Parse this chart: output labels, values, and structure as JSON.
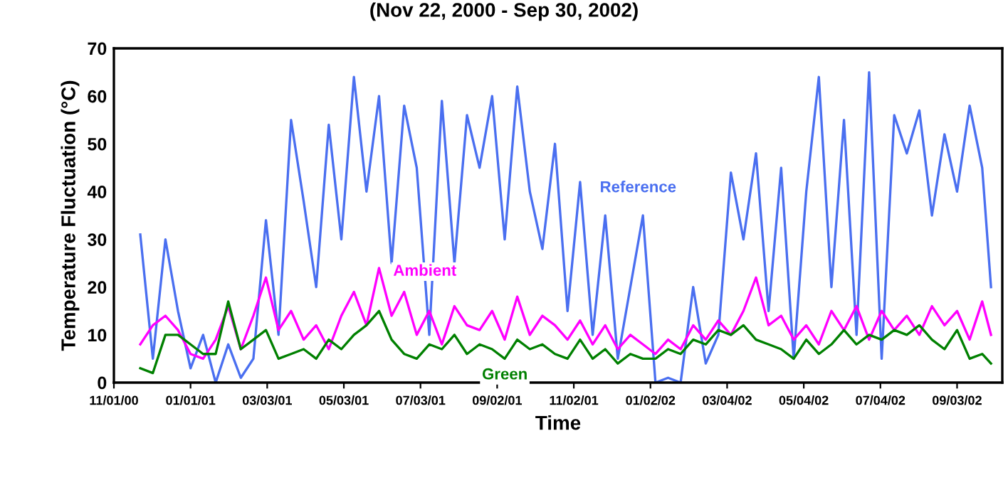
{
  "chart_data": {
    "type": "line",
    "title": "(Nov 22, 2000 - Sep 30, 2002)",
    "xlabel": "Time",
    "ylabel": "Temperature Fluctuation (°C)",
    "x": [
      "2000-11-22",
      "2000-12-02",
      "2000-12-12",
      "2000-12-22",
      "2001-01-01",
      "2001-01-11",
      "2001-01-21",
      "2001-01-31",
      "2001-02-10",
      "2001-02-20",
      "2001-03-02",
      "2001-03-12",
      "2001-03-22",
      "2001-04-01",
      "2001-04-11",
      "2001-04-21",
      "2001-05-01",
      "2001-05-11",
      "2001-05-21",
      "2001-05-31",
      "2001-06-10",
      "2001-06-20",
      "2001-06-30",
      "2001-07-10",
      "2001-07-20",
      "2001-07-30",
      "2001-08-09",
      "2001-08-19",
      "2001-08-29",
      "2001-09-08",
      "2001-09-18",
      "2001-09-28",
      "2001-10-08",
      "2001-10-18",
      "2001-10-28",
      "2001-11-07",
      "2001-11-17",
      "2001-11-27",
      "2001-12-07",
      "2001-12-17",
      "2001-12-27",
      "2002-01-06",
      "2002-01-16",
      "2002-01-26",
      "2002-02-05",
      "2002-02-15",
      "2002-02-25",
      "2002-03-07",
      "2002-03-17",
      "2002-03-27",
      "2002-04-06",
      "2002-04-16",
      "2002-04-26",
      "2002-05-06",
      "2002-05-16",
      "2002-05-26",
      "2002-06-05",
      "2002-06-15",
      "2002-06-25",
      "2002-07-05",
      "2002-07-15",
      "2002-07-25",
      "2002-08-04",
      "2002-08-14",
      "2002-08-24",
      "2002-09-03",
      "2002-09-13",
      "2002-09-23",
      "2002-09-30"
    ],
    "series": [
      {
        "name": "Reference",
        "color": "#4a6ff0",
        "values": [
          31,
          5,
          30,
          15,
          3,
          10,
          0,
          8,
          1,
          5,
          34,
          10,
          55,
          38,
          20,
          54,
          30,
          64,
          40,
          60,
          25,
          58,
          45,
          10,
          59,
          25,
          56,
          45,
          60,
          30,
          62,
          40,
          28,
          50,
          15,
          42,
          10,
          35,
          5,
          20,
          35,
          0,
          1,
          0,
          20,
          4,
          10,
          44,
          30,
          48,
          15,
          45,
          5,
          40,
          64,
          20,
          55,
          10,
          65,
          5,
          56,
          48,
          57,
          35,
          52,
          40,
          58,
          45,
          20
        ]
      },
      {
        "name": "Ambient",
        "color": "#ff00ff",
        "values": [
          8,
          12,
          14,
          11,
          6,
          5,
          9,
          16,
          7,
          14,
          22,
          11,
          15,
          9,
          12,
          7,
          14,
          19,
          12,
          24,
          14,
          19,
          10,
          15,
          8,
          16,
          12,
          11,
          15,
          9,
          18,
          10,
          14,
          12,
          9,
          13,
          8,
          12,
          7,
          10,
          8,
          6,
          9,
          7,
          12,
          9,
          13,
          10,
          15,
          22,
          12,
          14,
          9,
          12,
          8,
          15,
          11,
          16,
          9,
          15,
          11,
          14,
          10,
          16,
          12,
          15,
          9,
          17,
          10
        ]
      },
      {
        "name": "Green",
        "color": "#008000",
        "values": [
          3,
          2,
          10,
          10,
          8,
          6,
          6,
          17,
          7,
          9,
          11,
          5,
          6,
          7,
          5,
          9,
          7,
          10,
          12,
          15,
          9,
          6,
          5,
          8,
          7,
          10,
          6,
          8,
          7,
          5,
          9,
          7,
          8,
          6,
          5,
          9,
          5,
          7,
          4,
          6,
          5,
          5,
          7,
          6,
          9,
          8,
          11,
          10,
          12,
          9,
          8,
          7,
          5,
          9,
          6,
          8,
          11,
          8,
          10,
          9,
          11,
          10,
          12,
          9,
          7,
          11,
          5,
          6,
          4
        ]
      }
    ],
    "xlim": [
      "2000-11-01",
      "2002-10-09"
    ],
    "xticks": [
      {
        "value": "2000-11-01",
        "label": "11/01/00"
      },
      {
        "value": "2001-01-01",
        "label": "01/01/01"
      },
      {
        "value": "2001-03-03",
        "label": "03/03/01"
      },
      {
        "value": "2001-05-03",
        "label": "05/03/01"
      },
      {
        "value": "2001-07-03",
        "label": "07/03/01"
      },
      {
        "value": "2001-09-02",
        "label": "09/02/01"
      },
      {
        "value": "2001-11-02",
        "label": "11/02/01"
      },
      {
        "value": "2002-01-02",
        "label": "01/02/02"
      },
      {
        "value": "2002-03-04",
        "label": "03/04/02"
      },
      {
        "value": "2002-05-04",
        "label": "05/04/02"
      },
      {
        "value": "2002-07-04",
        "label": "07/04/02"
      },
      {
        "value": "2002-09-03",
        "label": "09/03/02"
      }
    ],
    "ylim": [
      0,
      70
    ],
    "yticks": [
      0,
      10,
      20,
      30,
      40,
      50,
      60,
      70
    ],
    "grid": false,
    "legend": false,
    "marker": "none",
    "line_style": "solid"
  }
}
